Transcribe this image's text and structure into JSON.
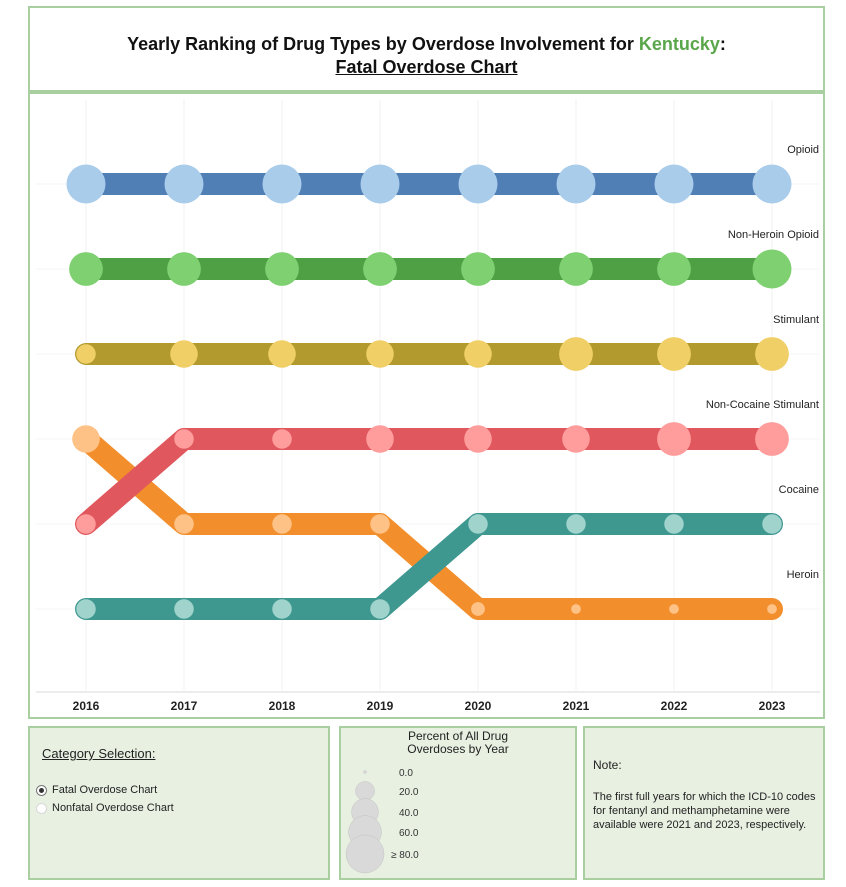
{
  "header": {
    "title_prefix": "Yearly Ranking of Drug Types by Overdose Involvement for ",
    "state": "Kentucky",
    "title_suffix": ":",
    "subtitle": "Fatal Overdose Chart"
  },
  "chart_data": {
    "type": "line",
    "x": [
      "2016",
      "2017",
      "2018",
      "2019",
      "2020",
      "2021",
      "2022",
      "2023"
    ],
    "y_direction": "rank 1 at top",
    "series": [
      {
        "name": "Opioid",
        "color": "#4f7fb5",
        "dot_color": "#a9cceb",
        "ranks": [
          1,
          1,
          1,
          1,
          1,
          1,
          1,
          1
        ],
        "dot_size": [
          80,
          80,
          80,
          80,
          80,
          80,
          80,
          80
        ]
      },
      {
        "name": "Non-Heroin Opioid",
        "color": "#4f9f45",
        "dot_color": "#7fd071",
        "ranks": [
          2,
          2,
          2,
          2,
          2,
          2,
          2,
          2
        ],
        "dot_size": [
          60,
          60,
          60,
          60,
          60,
          60,
          60,
          80
        ]
      },
      {
        "name": "Stimulant",
        "color": "#b29a2f",
        "dot_color": "#f0cf66",
        "ranks": [
          3,
          3,
          3,
          3,
          3,
          3,
          3,
          3
        ],
        "dot_size": [
          20,
          40,
          40,
          40,
          40,
          60,
          60,
          60
        ]
      },
      {
        "name": "Non-Cocaine Stimulant",
        "color": "#e0585d",
        "dot_color": "#ff9d9d",
        "ranks": [
          5,
          4,
          4,
          4,
          4,
          4,
          4,
          4
        ],
        "dot_size": [
          20,
          20,
          20,
          40,
          40,
          40,
          60,
          60
        ]
      },
      {
        "name": "Cocaine",
        "color": "#3f9890",
        "dot_color": "#9fd3cc",
        "ranks": [
          6,
          6,
          6,
          6,
          5,
          5,
          5,
          5
        ],
        "dot_size": [
          20,
          20,
          20,
          20,
          20,
          20,
          20,
          20
        ]
      },
      {
        "name": "Heroin",
        "color": "#f28e2b",
        "dot_color": "#ffc286",
        "ranks": [
          4,
          5,
          5,
          5,
          6,
          6,
          6,
          6
        ],
        "dot_size": [
          40,
          20,
          20,
          20,
          10,
          5,
          5,
          5
        ]
      }
    ]
  },
  "category_selection": {
    "heading": "Category Selection:",
    "options": [
      {
        "label": "Fatal Overdose Chart",
        "selected": true
      },
      {
        "label": "Nonfatal Overdose Chart",
        "selected": false
      }
    ]
  },
  "size_legend": {
    "title_line1": "Percent of All Drug",
    "title_line2": "Overdoses by Year",
    "entries": [
      {
        "label": "0.0",
        "value": 0
      },
      {
        "label": "20.0",
        "value": 20
      },
      {
        "label": "40.0",
        "value": 40
      },
      {
        "label": "60.0",
        "value": 60
      },
      {
        "label": "≥ 80.0",
        "value": 80
      }
    ],
    "shape_color": "#d9d9d9"
  },
  "note": {
    "heading": "Note:",
    "body": "The first full years for which the ICD-10 codes for fentanyl and methamphetamine were available were 2021 and 2023, respectively."
  }
}
